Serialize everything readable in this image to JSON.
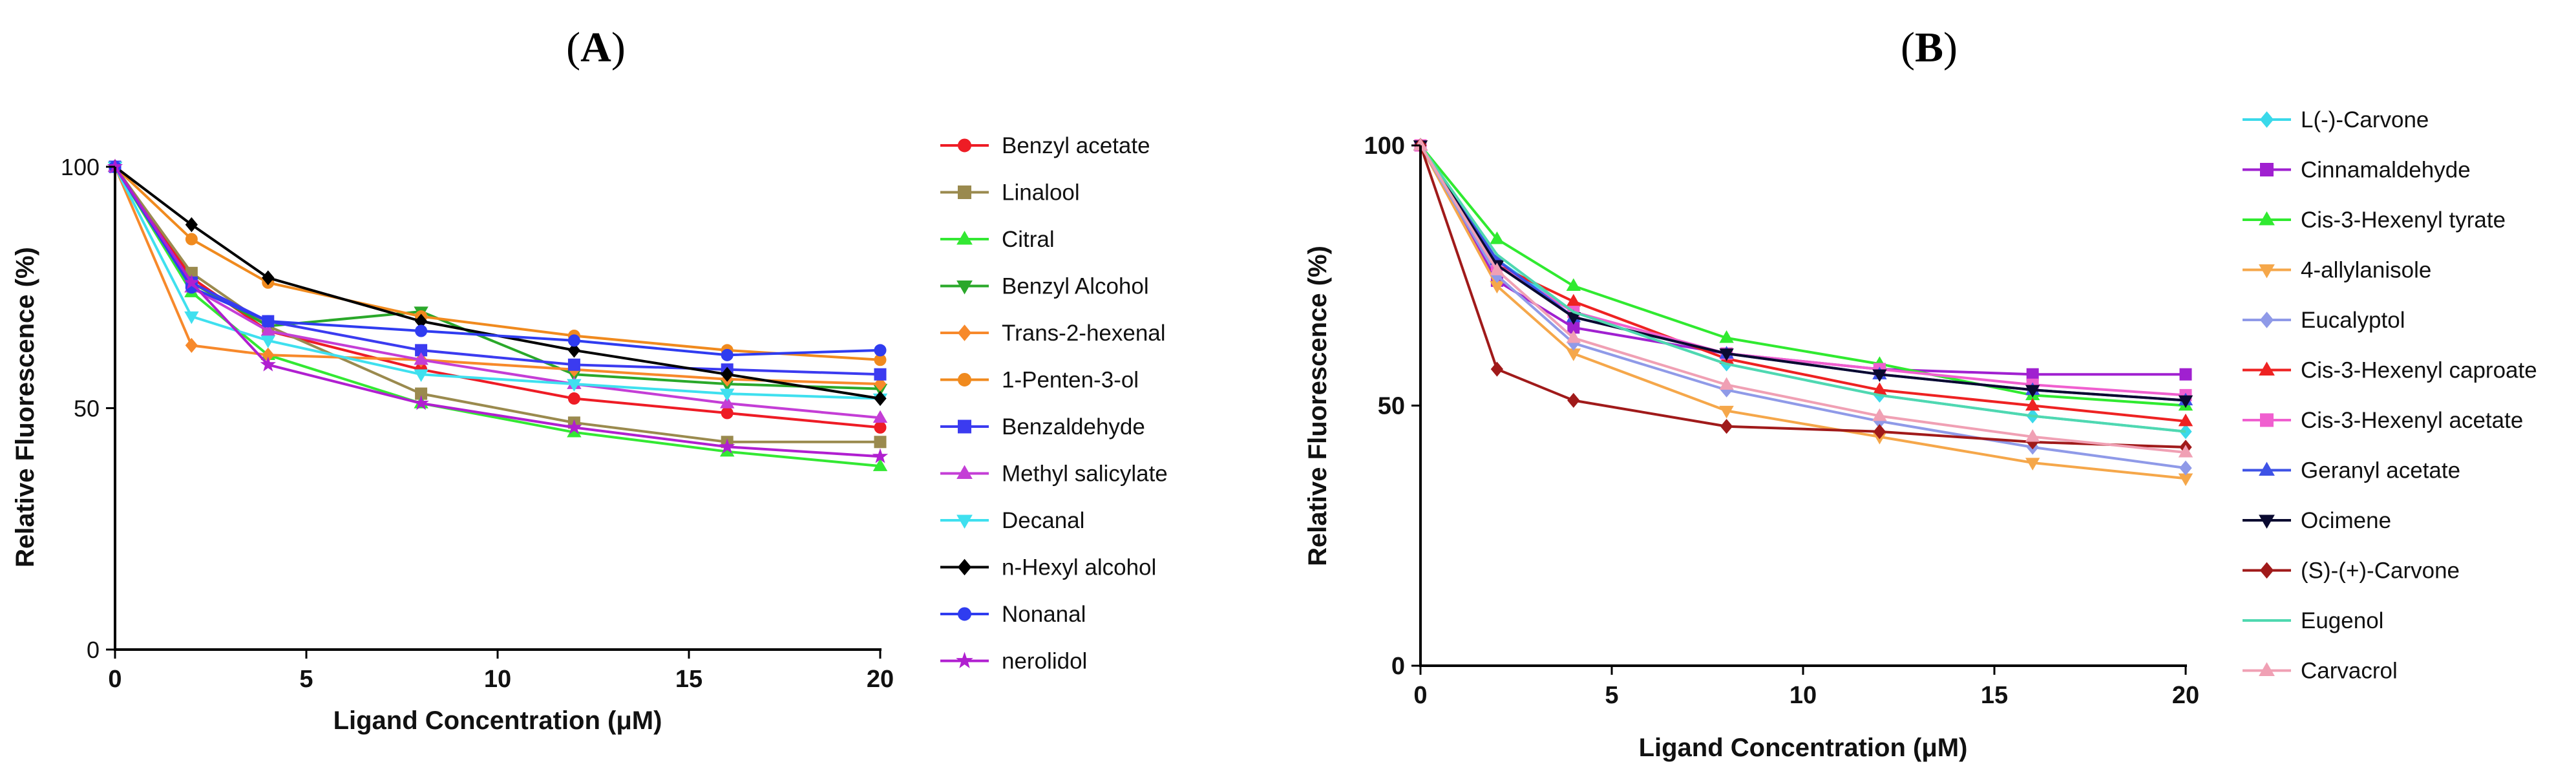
{
  "chart_data": [
    {
      "panel_label": "(A)",
      "panel_letter": "A",
      "type": "line",
      "title": "",
      "xlabel": "Ligand Concentration (μM)",
      "ylabel": "Relative Fluorescence (%)",
      "xlim": [
        0,
        20
      ],
      "ylim": [
        0,
        100
      ],
      "xticks": [
        "0",
        "5",
        "10",
        "15",
        "20"
      ],
      "yticks": [
        "0",
        "50",
        "100"
      ],
      "legend_position": "right",
      "x": [
        0,
        2,
        4,
        8,
        12,
        16,
        20
      ],
      "series": [
        {
          "name": "Benzyl acetate",
          "color": "#ee1c25",
          "marker": "circle",
          "values": [
            100,
            77,
            66,
            58,
            52,
            49,
            46
          ]
        },
        {
          "name": "Linalool",
          "color": "#9a8a4e",
          "marker": "square",
          "values": [
            100,
            78,
            67,
            53,
            47,
            43,
            43
          ]
        },
        {
          "name": "Citral",
          "color": "#33e833",
          "marker": "triangle-up",
          "values": [
            100,
            74,
            61,
            51,
            45,
            41,
            38
          ]
        },
        {
          "name": "Benzyl Alcohol",
          "color": "#2aa82a",
          "marker": "triangle-down",
          "values": [
            100,
            76,
            67,
            70,
            57,
            55,
            54
          ]
        },
        {
          "name": "Trans-2-hexenal",
          "color": "#f7892b",
          "marker": "diamond",
          "values": [
            100,
            63,
            61,
            60,
            58,
            56,
            55
          ]
        },
        {
          "name": "1-Penten-3-ol",
          "color": "#f08a1e",
          "marker": "circle",
          "values": [
            100,
            85,
            76,
            69,
            65,
            62,
            60
          ]
        },
        {
          "name": "Benzaldehyde",
          "color": "#3b3bf0",
          "marker": "square",
          "values": [
            100,
            76,
            68,
            62,
            59,
            58,
            57
          ]
        },
        {
          "name": "Methyl salicylate",
          "color": "#c43ed6",
          "marker": "triangle-up",
          "values": [
            100,
            75,
            66,
            60,
            55,
            51,
            48
          ]
        },
        {
          "name": "Decanal",
          "color": "#3fe0ef",
          "marker": "triangle-down",
          "values": [
            100,
            69,
            64,
            57,
            55,
            53,
            52
          ]
        },
        {
          "name": "n-Hexyl alcohol",
          "color": "#000000",
          "marker": "diamond",
          "values": [
            100,
            88,
            77,
            68,
            62,
            57,
            52
          ]
        },
        {
          "name": "Nonanal",
          "color": "#2f3cf0",
          "marker": "circle",
          "values": [
            100,
            75,
            68,
            66,
            64,
            61,
            62
          ]
        },
        {
          "name": "nerolidol",
          "color": "#b01fd0",
          "marker": "star",
          "values": [
            100,
            76,
            59,
            51,
            46,
            42,
            40
          ]
        }
      ]
    },
    {
      "panel_label": "(B)",
      "panel_letter": "B",
      "type": "line",
      "title": "",
      "xlabel": "Ligand Concentration (μM)",
      "ylabel": "Relative Fluorescence (%)",
      "xlim": [
        0,
        20
      ],
      "ylim": [
        0,
        100
      ],
      "xticks": [
        "0",
        "5",
        "10",
        "15",
        "20"
      ],
      "yticks": [
        "0",
        "50",
        "100"
      ],
      "legend_position": "right",
      "x": [
        0,
        2,
        4,
        8,
        12,
        16,
        20
      ],
      "series": [
        {
          "name": "L(-)-Carvone",
          "color": "#3ad9ea",
          "marker": "diamond",
          "values": [
            100,
            78,
            68,
            58,
            52,
            48,
            45
          ]
        },
        {
          "name": "Cinnamaldehyde",
          "color": "#a020d0",
          "marker": "square",
          "values": [
            100,
            74,
            65,
            60,
            57,
            56,
            56
          ]
        },
        {
          "name": "Cis-3-Hexenyl tyrate",
          "color": "#30ea30",
          "marker": "triangle-up",
          "values": [
            100,
            82,
            73,
            63,
            58,
            52,
            50
          ]
        },
        {
          "name": "4-allylanisole",
          "color": "#f5a74a",
          "marker": "triangle-down",
          "values": [
            100,
            73,
            60,
            49,
            44,
            39,
            36
          ]
        },
        {
          "name": "Eucalyptol",
          "color": "#8f9ae8",
          "marker": "diamond",
          "values": [
            100,
            75,
            62,
            53,
            47,
            42,
            38
          ]
        },
        {
          "name": "Cis-3-Hexenyl caproate",
          "color": "#ee2222",
          "marker": "triangle-up",
          "values": [
            100,
            77,
            70,
            59,
            53,
            50,
            47
          ]
        },
        {
          "name": "Cis-3-Hexenyl acetate",
          "color": "#f05fcf",
          "marker": "square",
          "values": [
            100,
            77,
            68,
            60,
            57,
            54,
            52
          ]
        },
        {
          "name": "Geranyl acetate",
          "color": "#3e52e6",
          "marker": "triangle-up",
          "values": [
            100,
            78,
            67,
            60,
            56,
            53,
            51
          ]
        },
        {
          "name": "Ocimene",
          "color": "#0a0a30",
          "marker": "triangle-down",
          "values": [
            100,
            77,
            67,
            60,
            56,
            53,
            51
          ]
        },
        {
          "name": "(S)-(+)-Carvone",
          "color": "#a01a1a",
          "marker": "diamond",
          "values": [
            100,
            57,
            51,
            46,
            45,
            43,
            42
          ]
        },
        {
          "name": "Eugenol",
          "color": "#4fd8b0",
          "marker": "line",
          "values": [
            100,
            79,
            68,
            58,
            52,
            48,
            45
          ]
        },
        {
          "name": "Carvacrol",
          "color": "#f0a0b4",
          "marker": "triangle-up",
          "values": [
            100,
            76,
            63,
            54,
            48,
            44,
            41
          ]
        }
      ]
    }
  ]
}
